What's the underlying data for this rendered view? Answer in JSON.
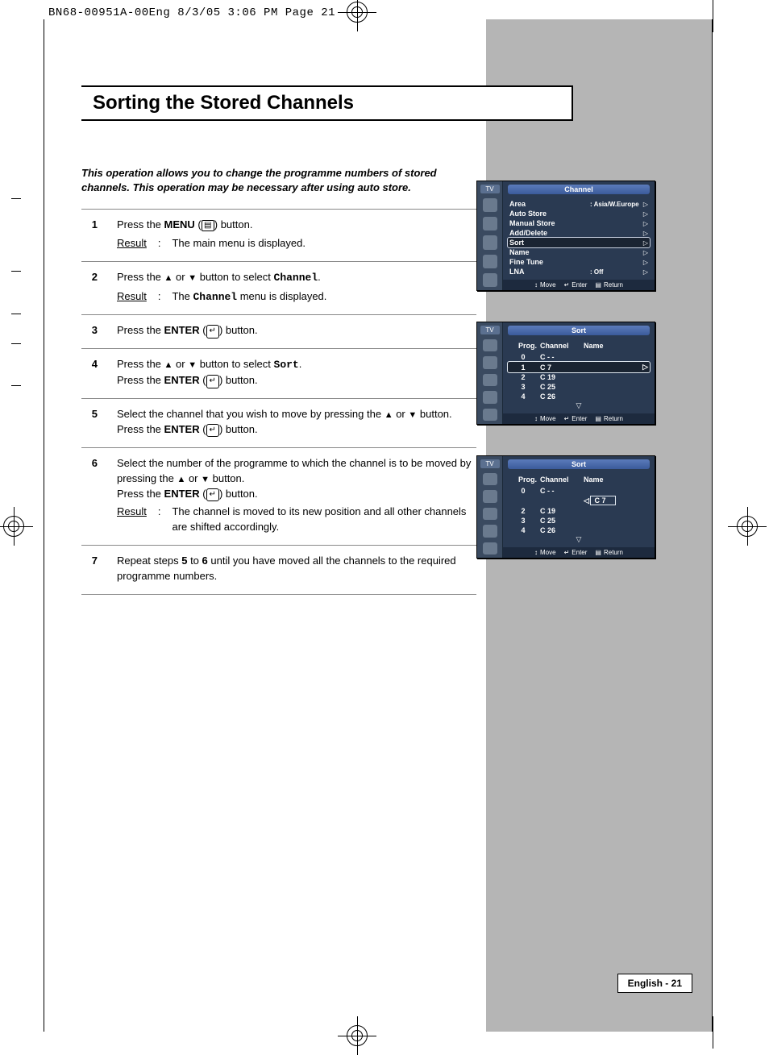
{
  "crop_header": "BN68-00951A-00Eng  8/3/05  3:06 PM  Page 21",
  "title": "Sorting the Stored Channels",
  "intro": "This operation allows you to change the programme numbers of stored channels. This operation may be necessary after using auto store.",
  "page_footer": "English - 21",
  "steps": [
    {
      "num": "1",
      "body_html": "Press the <span class='b'>MENU</span> (<span class='icon-box'>&#9636;</span>) button.",
      "result": "The main menu is displayed."
    },
    {
      "num": "2",
      "body_html": "Press the <span class='tri'>&#9650;</span> or <span class='tri'>&#9660;</span> button to select <span class='mono'>Channel</span>.",
      "result": "The <span class='mono'>Channel</span> menu is displayed."
    },
    {
      "num": "3",
      "body_html": "Press the <span class='b'>ENTER</span> (<span class='enter-icon'>&#8629;</span>) button."
    },
    {
      "num": "4",
      "body_html": "Press the <span class='tri'>&#9650;</span> or <span class='tri'>&#9660;</span> button to select <span class='mono'>Sort</span>.<br>Press the <span class='b'>ENTER</span> (<span class='enter-icon'>&#8629;</span>) button."
    },
    {
      "num": "5",
      "body_html": "Select the channel that you wish to move by pressing the <span class='tri'>&#9650;</span> or <span class='tri'>&#9660;</span> button. Press the <span class='b'>ENTER</span> (<span class='enter-icon'>&#8629;</span>) button."
    },
    {
      "num": "6",
      "body_html": "Select the number of the programme to which the channel is to be moved by pressing the <span class='tri'>&#9650;</span> or <span class='tri'>&#9660;</span> button.<br>Press the <span class='b'>ENTER</span> (<span class='enter-icon'>&#8629;</span>) button.",
      "result": "The channel is moved to its new position and all other channels are shifted accordingly."
    },
    {
      "num": "7",
      "body_html": "Repeat steps <span class='b'>5</span> to <span class='b'>6</span> until you have moved all the channels to the required programme numbers."
    }
  ],
  "osd1": {
    "tv_label": "TV",
    "title": "Channel",
    "rows": [
      {
        "label": "Area",
        "val": ": Asia/W.Europe",
        "arr": "▷"
      },
      {
        "label": "Auto Store",
        "val": "",
        "arr": "▷"
      },
      {
        "label": "Manual Store",
        "val": "",
        "arr": "▷"
      },
      {
        "label": "Add/Delete",
        "val": "",
        "arr": "▷"
      },
      {
        "label": "Sort",
        "val": "",
        "arr": "▷",
        "sel": true
      },
      {
        "label": "Name",
        "val": "",
        "arr": "▷"
      },
      {
        "label": "Fine Tune",
        "val": "",
        "arr": "▷"
      },
      {
        "label": "LNA",
        "val": ": Off",
        "arr": "▷"
      }
    ],
    "footer": {
      "move": "Move",
      "enter": "Enter",
      "return": "Return"
    }
  },
  "osd2": {
    "tv_label": "TV",
    "title": "Sort",
    "head": {
      "prog": "Prog.",
      "chan": "Channel",
      "name": "Name"
    },
    "rows": [
      {
        "prog": "0",
        "chan": "C - -",
        "name": ""
      },
      {
        "prog": "1",
        "chan": "C 7",
        "name": "",
        "sel": true,
        "arr_right": true
      },
      {
        "prog": "2",
        "chan": "C 19",
        "name": ""
      },
      {
        "prog": "3",
        "chan": "C 25",
        "name": ""
      },
      {
        "prog": "4",
        "chan": "C 26",
        "name": ""
      }
    ],
    "footer": {
      "move": "Move",
      "enter": "Enter",
      "return": "Return"
    }
  },
  "osd3": {
    "tv_label": "TV",
    "title": "Sort",
    "head": {
      "prog": "Prog.",
      "chan": "Channel",
      "name": "Name"
    },
    "rows": [
      {
        "prog": "0",
        "chan": "C - -",
        "name": ""
      },
      {
        "prog": "",
        "chan": "",
        "name": "C 7",
        "name_boxed": true,
        "arr_left": true
      },
      {
        "prog": "2",
        "chan": "C 19",
        "name": ""
      },
      {
        "prog": "3",
        "chan": "C 25",
        "name": ""
      },
      {
        "prog": "4",
        "chan": "C 26",
        "name": ""
      }
    ],
    "footer": {
      "move": "Move",
      "enter": "Enter",
      "return": "Return"
    }
  }
}
